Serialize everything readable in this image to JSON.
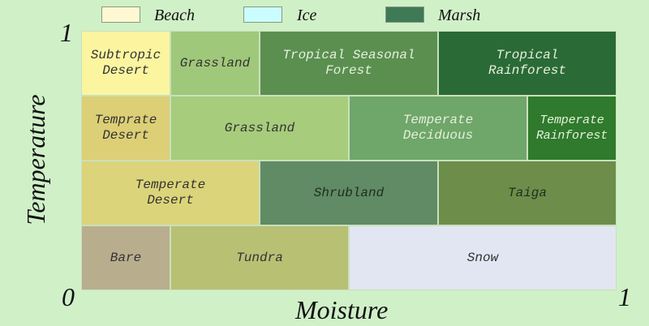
{
  "legend": [
    {
      "label": "Beach",
      "color": "#fff8d2"
    },
    {
      "label": "Ice",
      "color": "#cbfcff"
    },
    {
      "label": "Marsh",
      "color": "#3e7a56"
    }
  ],
  "axes": {
    "x_label": "Moisture",
    "y_label": "Temperature",
    "x_min": "0",
    "x_max": "1",
    "y_max": "1"
  },
  "grid": {
    "columns": 6,
    "rows": 4,
    "cell_border_color": "#c8e0bc"
  },
  "biomes": [
    {
      "label": "Subtropic\nDesert",
      "color": "#fbf5a0",
      "text_color": "#333333",
      "row": 1,
      "col_start": 0,
      "col_span": 1
    },
    {
      "label": "Grassland",
      "color": "#a0c87a",
      "text_color": "#333333",
      "row": 1,
      "col_start": 1,
      "col_span": 1
    },
    {
      "label": "Tropical Seasonal\nForest",
      "color": "#5a8f50",
      "text_color": "#e6f0dc",
      "row": 1,
      "col_start": 2,
      "col_span": 2
    },
    {
      "label": "Tropical\nRainforest",
      "color": "#2a6a36",
      "text_color": "#e6f0dc",
      "row": 1,
      "col_start": 4,
      "col_span": 2
    },
    {
      "label": "Temprate\nDesert",
      "color": "#dccf76",
      "text_color": "#333333",
      "row": 2,
      "col_start": 0,
      "col_span": 1
    },
    {
      "label": "Grassland",
      "color": "#a6cc7c",
      "text_color": "#333333",
      "row": 2,
      "col_start": 1,
      "col_span": 2
    },
    {
      "label": "Temperate\nDeciduous",
      "color": "#6fa66a",
      "text_color": "#e6f0dc",
      "row": 2,
      "col_start": 3,
      "col_span": 2
    },
    {
      "label": "Temperate\nRainforest",
      "color": "#2f7a2c",
      "text_color": "#e6f0dc",
      "row": 2,
      "col_start": 5,
      "col_span": 1
    },
    {
      "label": "Temperate\nDesert",
      "color": "#dcd47a",
      "text_color": "#333333",
      "row": 3,
      "col_start": 0,
      "col_span": 2
    },
    {
      "label": "Shrubland",
      "color": "#608b64",
      "text_color": "#1e2e1e",
      "row": 3,
      "col_start": 2,
      "col_span": 2
    },
    {
      "label": "Taiga",
      "color": "#6c8e4a",
      "text_color": "#1e2e1e",
      "row": 3,
      "col_start": 4,
      "col_span": 2
    },
    {
      "label": "Bare",
      "color": "#b8ae8e",
      "text_color": "#333333",
      "row": 4,
      "col_start": 0,
      "col_span": 1
    },
    {
      "label": "Tundra",
      "color": "#b8c074",
      "text_color": "#333333",
      "row": 4,
      "col_start": 1,
      "col_span": 2
    },
    {
      "label": "Snow",
      "color": "#e2e6f2",
      "text_color": "#333333",
      "row": 4,
      "col_start": 3,
      "col_span": 3
    }
  ]
}
